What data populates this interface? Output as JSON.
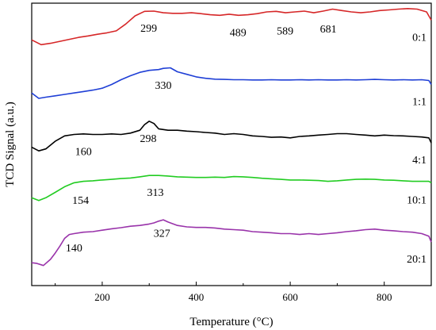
{
  "chart_data": {
    "type": "line",
    "title": "",
    "xlabel": "Temperature (°C)",
    "ylabel": "TCD Signal (a.u.)",
    "xlim": [
      50,
      900
    ],
    "ylim": [
      0,
      100
    ],
    "x_ticks": [
      200,
      400,
      600,
      800
    ],
    "y_ticks_shown": false,
    "grid": false,
    "legend": "none",
    "series": [
      {
        "label": "0:1",
        "color": "#d62728",
        "points": [
          [
            50,
            87.0
          ],
          [
            70,
            85.3
          ],
          [
            90,
            85.8
          ],
          [
            110,
            86.5
          ],
          [
            130,
            87.2
          ],
          [
            150,
            87.9
          ],
          [
            170,
            88.4
          ],
          [
            190,
            89.0
          ],
          [
            210,
            89.5
          ],
          [
            230,
            90.2
          ],
          [
            250,
            92.6
          ],
          [
            270,
            95.5
          ],
          [
            290,
            97.1
          ],
          [
            310,
            97.2
          ],
          [
            330,
            96.6
          ],
          [
            350,
            96.4
          ],
          [
            370,
            96.4
          ],
          [
            390,
            96.6
          ],
          [
            410,
            96.3
          ],
          [
            430,
            95.9
          ],
          [
            450,
            95.7
          ],
          [
            470,
            96.1
          ],
          [
            490,
            95.7
          ],
          [
            510,
            95.9
          ],
          [
            530,
            96.3
          ],
          [
            550,
            96.9
          ],
          [
            570,
            97.1
          ],
          [
            590,
            96.6
          ],
          [
            610,
            96.9
          ],
          [
            630,
            97.2
          ],
          [
            650,
            96.6
          ],
          [
            670,
            97.2
          ],
          [
            690,
            97.9
          ],
          [
            710,
            97.4
          ],
          [
            730,
            96.9
          ],
          [
            750,
            96.6
          ],
          [
            770,
            96.9
          ],
          [
            790,
            97.4
          ],
          [
            810,
            97.6
          ],
          [
            830,
            97.9
          ],
          [
            850,
            98.1
          ],
          [
            870,
            97.9
          ],
          [
            890,
            96.9
          ],
          [
            900,
            94.0
          ]
        ],
        "peaks": [
          299,
          489,
          589,
          681
        ],
        "peak_labels": [
          "299",
          "489",
          "589",
          "681"
        ],
        "peak_label_y": [
          91.3,
          89.8,
          90.3,
          91.0
        ]
      },
      {
        "label": "1:1",
        "color": "#1f3fd6",
        "points": [
          [
            50,
            68.2
          ],
          [
            65,
            66.3
          ],
          [
            80,
            66.7
          ],
          [
            100,
            67.2
          ],
          [
            120,
            67.7
          ],
          [
            140,
            68.2
          ],
          [
            160,
            68.7
          ],
          [
            180,
            69.2
          ],
          [
            200,
            69.9
          ],
          [
            220,
            71.2
          ],
          [
            240,
            72.9
          ],
          [
            260,
            74.3
          ],
          [
            280,
            75.5
          ],
          [
            300,
            76.2
          ],
          [
            320,
            76.5
          ],
          [
            330,
            76.9
          ],
          [
            345,
            77.1
          ],
          [
            360,
            75.7
          ],
          [
            380,
            74.8
          ],
          [
            400,
            73.9
          ],
          [
            420,
            73.4
          ],
          [
            440,
            73.1
          ],
          [
            460,
            73.0
          ],
          [
            480,
            72.9
          ],
          [
            500,
            72.9
          ],
          [
            520,
            72.8
          ],
          [
            540,
            72.8
          ],
          [
            560,
            72.9
          ],
          [
            580,
            72.8
          ],
          [
            600,
            72.8
          ],
          [
            620,
            72.9
          ],
          [
            640,
            72.8
          ],
          [
            660,
            72.9
          ],
          [
            680,
            72.8
          ],
          [
            700,
            72.8
          ],
          [
            720,
            72.9
          ],
          [
            740,
            72.8
          ],
          [
            760,
            72.9
          ],
          [
            780,
            73.0
          ],
          [
            800,
            72.9
          ],
          [
            820,
            72.8
          ],
          [
            840,
            72.9
          ],
          [
            860,
            72.8
          ],
          [
            880,
            72.9
          ],
          [
            895,
            72.6
          ],
          [
            900,
            71.2
          ]
        ],
        "peaks": [
          330
        ],
        "peak_labels": [
          "330"
        ],
        "peak_label_y": [
          71.0
        ]
      },
      {
        "label": "4:1",
        "color": "#000000",
        "points": [
          [
            50,
            49.0
          ],
          [
            65,
            47.7
          ],
          [
            80,
            48.4
          ],
          [
            100,
            51.1
          ],
          [
            120,
            53.0
          ],
          [
            140,
            53.5
          ],
          [
            160,
            53.7
          ],
          [
            180,
            53.5
          ],
          [
            200,
            53.5
          ],
          [
            220,
            53.7
          ],
          [
            240,
            53.5
          ],
          [
            260,
            54.0
          ],
          [
            280,
            55.0
          ],
          [
            290,
            57.0
          ],
          [
            300,
            58.2
          ],
          [
            310,
            57.4
          ],
          [
            320,
            55.5
          ],
          [
            340,
            55.0
          ],
          [
            360,
            55.0
          ],
          [
            380,
            54.7
          ],
          [
            400,
            54.5
          ],
          [
            420,
            54.2
          ],
          [
            440,
            54.0
          ],
          [
            460,
            53.5
          ],
          [
            480,
            53.8
          ],
          [
            500,
            53.5
          ],
          [
            520,
            53.0
          ],
          [
            540,
            52.8
          ],
          [
            560,
            52.5
          ],
          [
            580,
            52.6
          ],
          [
            600,
            52.3
          ],
          [
            620,
            52.8
          ],
          [
            640,
            53.0
          ],
          [
            660,
            53.3
          ],
          [
            680,
            53.5
          ],
          [
            700,
            53.8
          ],
          [
            720,
            53.8
          ],
          [
            740,
            53.5
          ],
          [
            760,
            53.3
          ],
          [
            780,
            53.0
          ],
          [
            800,
            53.3
          ],
          [
            820,
            53.1
          ],
          [
            840,
            53.0
          ],
          [
            860,
            52.8
          ],
          [
            880,
            52.6
          ],
          [
            895,
            52.3
          ],
          [
            900,
            50.5
          ]
        ],
        "peaks": [
          160,
          298
        ],
        "peak_labels": [
          "160",
          "298"
        ],
        "peak_label_y": [
          47.6,
          52.2
        ]
      },
      {
        "label": "10:1",
        "color": "#22cc22",
        "points": [
          [
            50,
            31.1
          ],
          [
            65,
            30.1
          ],
          [
            80,
            31.1
          ],
          [
            100,
            33.0
          ],
          [
            120,
            35.0
          ],
          [
            140,
            36.4
          ],
          [
            160,
            36.9
          ],
          [
            180,
            37.1
          ],
          [
            200,
            37.4
          ],
          [
            220,
            37.6
          ],
          [
            240,
            37.9
          ],
          [
            260,
            38.1
          ],
          [
            280,
            38.5
          ],
          [
            300,
            39.0
          ],
          [
            320,
            39.0
          ],
          [
            340,
            38.8
          ],
          [
            360,
            38.5
          ],
          [
            380,
            38.4
          ],
          [
            400,
            38.3
          ],
          [
            420,
            38.3
          ],
          [
            440,
            38.4
          ],
          [
            460,
            38.3
          ],
          [
            480,
            38.6
          ],
          [
            500,
            38.5
          ],
          [
            520,
            38.3
          ],
          [
            540,
            38.0
          ],
          [
            560,
            37.8
          ],
          [
            580,
            37.6
          ],
          [
            600,
            37.4
          ],
          [
            620,
            37.4
          ],
          [
            640,
            37.3
          ],
          [
            660,
            37.2
          ],
          [
            680,
            36.9
          ],
          [
            700,
            37.1
          ],
          [
            720,
            37.4
          ],
          [
            740,
            37.6
          ],
          [
            760,
            37.7
          ],
          [
            780,
            37.6
          ],
          [
            800,
            37.4
          ],
          [
            820,
            37.3
          ],
          [
            840,
            37.1
          ],
          [
            860,
            36.9
          ],
          [
            880,
            36.9
          ],
          [
            895,
            36.9
          ],
          [
            900,
            36.4
          ]
        ],
        "peaks": [
          154,
          313
        ],
        "peak_labels": [
          "154",
          "313"
        ],
        "peak_label_y": [
          30.4,
          33.2
        ]
      },
      {
        "label": "20:1",
        "color": "#9933aa",
        "points": [
          [
            50,
            8.1
          ],
          [
            60,
            7.9
          ],
          [
            75,
            7.1
          ],
          [
            90,
            9.3
          ],
          [
            100,
            11.5
          ],
          [
            110,
            14.0
          ],
          [
            120,
            16.7
          ],
          [
            130,
            18.1
          ],
          [
            140,
            18.4
          ],
          [
            160,
            18.9
          ],
          [
            180,
            19.1
          ],
          [
            200,
            19.6
          ],
          [
            220,
            20.1
          ],
          [
            240,
            20.5
          ],
          [
            260,
            21.0
          ],
          [
            280,
            21.3
          ],
          [
            300,
            21.8
          ],
          [
            310,
            22.2
          ],
          [
            320,
            22.8
          ],
          [
            330,
            23.3
          ],
          [
            340,
            22.5
          ],
          [
            360,
            21.3
          ],
          [
            380,
            20.8
          ],
          [
            400,
            20.6
          ],
          [
            420,
            20.6
          ],
          [
            440,
            20.4
          ],
          [
            460,
            20.0
          ],
          [
            480,
            19.8
          ],
          [
            500,
            19.6
          ],
          [
            520,
            19.1
          ],
          [
            540,
            18.9
          ],
          [
            560,
            18.7
          ],
          [
            580,
            18.4
          ],
          [
            600,
            18.4
          ],
          [
            620,
            18.1
          ],
          [
            640,
            18.4
          ],
          [
            660,
            18.1
          ],
          [
            680,
            18.4
          ],
          [
            700,
            18.7
          ],
          [
            720,
            19.1
          ],
          [
            740,
            19.4
          ],
          [
            760,
            19.8
          ],
          [
            780,
            20.0
          ],
          [
            800,
            19.6
          ],
          [
            820,
            19.4
          ],
          [
            840,
            19.1
          ],
          [
            860,
            18.9
          ],
          [
            880,
            18.4
          ],
          [
            895,
            17.5
          ],
          [
            900,
            15.4
          ]
        ],
        "peaks": [
          140,
          327
        ],
        "peak_labels": [
          "140",
          "327"
        ],
        "peak_label_y": [
          13.5,
          18.7
        ]
      }
    ]
  }
}
